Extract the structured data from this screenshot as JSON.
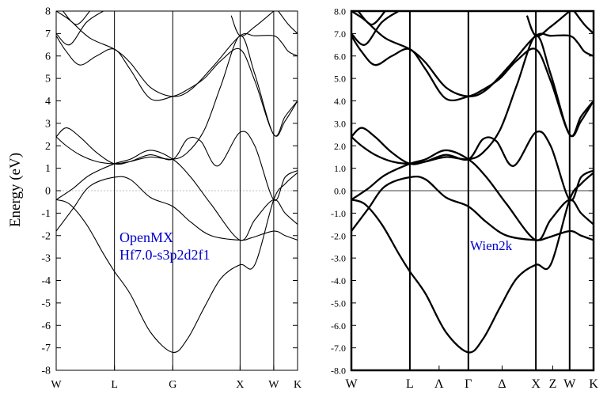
{
  "y_axis_label": "Energy (eV)",
  "chart_data": [
    {
      "type": "line",
      "panel": "left",
      "annotation": [
        "OpenMX",
        "Hf7.0-s3p2d2f1"
      ],
      "annotation_color": "#0000cc",
      "ylim": [
        -8,
        8
      ],
      "y_ticks": [
        -8,
        -7,
        -6,
        -5,
        -4,
        -3,
        -2,
        -1,
        0,
        1,
        2,
        3,
        4,
        5,
        6,
        7,
        8
      ],
      "y_tick_labels": [
        "-8",
        "-7",
        "-6",
        "-5",
        "-4",
        "-3",
        "-2",
        "-1",
        "0",
        "1",
        "2",
        "3",
        "4",
        "5",
        "6",
        "7",
        "8"
      ],
      "kpath_labels": [
        "W",
        "L",
        "G",
        "X",
        "W",
        "K"
      ],
      "kpath_positions": [
        0,
        0.866,
        1.732,
        2.732,
        3.232,
        3.586
      ],
      "vertical_lines_at": [
        0.866,
        1.732,
        2.732,
        3.232
      ],
      "fermi_line": {
        "y": 0,
        "style": "dotted"
      },
      "line_color": "#000000",
      "series": [
        {
          "x": [
            0,
            0.25,
            0.5,
            0.866,
            1.1,
            1.4,
            1.732,
            2.0,
            2.3,
            2.732,
            2.9,
            3.232,
            3.4,
            3.586
          ],
          "y": [
            -1.8,
            -0.8,
            0.2,
            0.6,
            0.5,
            -0.3,
            -0.7,
            -1.4,
            -2.0,
            -2.2,
            -2.1,
            -1.8,
            -2.0,
            -2.2
          ]
        },
        {
          "x": [
            0,
            0.2,
            0.45,
            0.7,
            0.866,
            1.1,
            1.4,
            1.732,
            1.95,
            2.2,
            2.45,
            2.732,
            2.95,
            3.232,
            3.4,
            3.586
          ],
          "y": [
            -0.4,
            -0.6,
            -1.5,
            -2.8,
            -3.6,
            -4.6,
            -6.3,
            -7.2,
            -6.6,
            -5.2,
            -3.9,
            -3.3,
            -3.3,
            -0.4,
            0.3,
            0.8
          ]
        },
        {
          "x": [
            0,
            0.25,
            0.5,
            0.866,
            1.1,
            1.4,
            1.732,
            2.0,
            2.3,
            2.732,
            2.95,
            3.232,
            3.4,
            3.586
          ],
          "y": [
            -0.4,
            0.1,
            0.7,
            1.2,
            1.4,
            1.8,
            1.4,
            0.6,
            -0.6,
            -2.2,
            -1.3,
            -0.4,
            -1.0,
            -1.5
          ]
        },
        {
          "x": [
            0,
            0.15,
            0.35,
            0.6,
            0.866,
            1.1,
            1.4,
            1.732,
            1.95,
            2.15,
            2.4,
            2.732,
            2.95,
            3.232,
            3.4,
            3.586
          ],
          "y": [
            2.4,
            2.8,
            2.4,
            1.7,
            1.2,
            1.3,
            1.6,
            1.4,
            2.3,
            2.2,
            1.1,
            2.6,
            2.0,
            -0.4,
            0.6,
            0.9
          ]
        },
        {
          "x": [
            0,
            0.15,
            0.35,
            0.6,
            0.866,
            1.1,
            1.4,
            1.732,
            1.95,
            2.2,
            2.45,
            2.732,
            2.95,
            3.232,
            3.4,
            3.586
          ],
          "y": [
            2.4,
            2.0,
            1.6,
            1.3,
            1.2,
            1.3,
            1.5,
            1.4,
            1.7,
            2.7,
            4.7,
            6.9,
            5.2,
            2.5,
            3.3,
            4.0
          ]
        },
        {
          "x": [
            0,
            0.15,
            0.35,
            0.6,
            0.866,
            1.1,
            1.4,
            1.732,
            1.95,
            2.2,
            2.45,
            2.732,
            2.95,
            3.232,
            3.4,
            3.586
          ],
          "y": [
            6.9,
            6.2,
            5.6,
            6.0,
            6.3,
            5.4,
            4.1,
            4.2,
            4.5,
            5.0,
            5.8,
            6.3,
            4.9,
            2.5,
            3.1,
            4.0
          ]
        },
        {
          "x": [
            0,
            0.2,
            0.5,
            0.866,
            1.1,
            1.4,
            1.732,
            2.0,
            2.35,
            2.732,
            2.95,
            3.232,
            3.35,
            3.45,
            3.586
          ],
          "y": [
            8.0,
            7.6,
            6.8,
            6.3,
            5.7,
            4.6,
            4.2,
            4.5,
            5.6,
            6.9,
            6.9,
            6.9,
            6.6,
            6.2,
            6.0
          ]
        },
        {
          "x": [
            0,
            0.2,
            0.45,
            0.7
          ],
          "y": [
            7.0,
            6.5,
            7.5,
            8.0
          ]
        },
        {
          "x": [
            0.1,
            0.3,
            0.5
          ],
          "y": [
            8.0,
            7.4,
            8.0
          ]
        },
        {
          "x": [
            2.6,
            2.732,
            2.95,
            3.232
          ],
          "y": [
            7.8,
            6.9,
            7.3,
            8.0
          ]
        },
        {
          "x": [
            3.3,
            3.45,
            3.586
          ],
          "y": [
            8.0,
            7.4,
            7.0
          ]
        }
      ]
    },
    {
      "type": "line",
      "panel": "right",
      "annotation": [
        "Wien2k"
      ],
      "annotation_color": "#0000cc",
      "ylim": [
        -8,
        8
      ],
      "y_ticks": [
        -8,
        -7,
        -6,
        -5,
        -4,
        -3,
        -2,
        -1,
        0,
        1,
        2,
        3,
        4,
        5,
        6,
        7,
        8
      ],
      "y_tick_labels": [
        "-8.0",
        "-7.0",
        "-6.0",
        "-5.0",
        "-4.0",
        "-3.0",
        "-2.0",
        "-1.0",
        "0.0",
        "1.0",
        "2.0",
        "3.0",
        "4.0",
        "5.0",
        "6.0",
        "7.0",
        "8.0"
      ],
      "kpath_labels": [
        "W",
        "L",
        "Λ",
        "Γ",
        "Δ",
        "X",
        "Z",
        "W",
        "K"
      ],
      "kpath_positions": [
        0,
        0.866,
        1.299,
        1.732,
        2.232,
        2.732,
        2.982,
        3.232,
        3.586
      ],
      "vertical_lines_at": [
        0.866,
        1.732,
        2.732,
        3.232
      ],
      "fermi_line": {
        "y": 0,
        "style": "solid"
      },
      "line_color": "#000000",
      "series": [
        {
          "x": [
            0,
            0.25,
            0.5,
            0.866,
            1.1,
            1.4,
            1.732,
            2.0,
            2.3,
            2.732,
            2.9,
            3.232,
            3.4,
            3.586
          ],
          "y": [
            -1.8,
            -0.8,
            0.2,
            0.6,
            0.5,
            -0.3,
            -0.7,
            -1.4,
            -2.0,
            -2.2,
            -2.1,
            -1.8,
            -2.0,
            -2.2
          ]
        },
        {
          "x": [
            0,
            0.2,
            0.45,
            0.7,
            0.866,
            1.1,
            1.4,
            1.732,
            1.95,
            2.2,
            2.45,
            2.732,
            2.95,
            3.232,
            3.4,
            3.586
          ],
          "y": [
            -0.4,
            -0.6,
            -1.5,
            -2.8,
            -3.6,
            -4.6,
            -6.3,
            -7.2,
            -6.6,
            -5.2,
            -3.9,
            -3.3,
            -3.3,
            -0.4,
            0.3,
            0.8
          ]
        },
        {
          "x": [
            0,
            0.25,
            0.5,
            0.866,
            1.1,
            1.4,
            1.732,
            2.0,
            2.3,
            2.732,
            2.95,
            3.232,
            3.4,
            3.586
          ],
          "y": [
            -0.4,
            0.1,
            0.7,
            1.2,
            1.4,
            1.8,
            1.4,
            0.6,
            -0.6,
            -2.2,
            -1.3,
            -0.4,
            -1.0,
            -1.5
          ]
        },
        {
          "x": [
            0,
            0.15,
            0.35,
            0.6,
            0.866,
            1.1,
            1.4,
            1.732,
            1.95,
            2.15,
            2.4,
            2.732,
            2.95,
            3.232,
            3.4,
            3.586
          ],
          "y": [
            2.4,
            2.8,
            2.4,
            1.7,
            1.2,
            1.3,
            1.6,
            1.4,
            2.3,
            2.2,
            1.1,
            2.6,
            2.0,
            -0.4,
            0.6,
            0.9
          ]
        },
        {
          "x": [
            0,
            0.15,
            0.35,
            0.6,
            0.866,
            1.1,
            1.4,
            1.732,
            1.95,
            2.2,
            2.45,
            2.732,
            2.95,
            3.232,
            3.4,
            3.586
          ],
          "y": [
            2.4,
            2.0,
            1.6,
            1.3,
            1.2,
            1.3,
            1.5,
            1.4,
            1.7,
            2.7,
            4.7,
            6.9,
            5.2,
            2.5,
            3.3,
            4.0
          ]
        },
        {
          "x": [
            0,
            0.15,
            0.35,
            0.6,
            0.866,
            1.1,
            1.4,
            1.732,
            1.95,
            2.2,
            2.45,
            2.732,
            2.95,
            3.232,
            3.4,
            3.586
          ],
          "y": [
            6.9,
            6.2,
            5.6,
            6.0,
            6.3,
            5.4,
            4.1,
            4.2,
            4.5,
            5.0,
            5.8,
            6.3,
            4.9,
            2.5,
            3.1,
            4.0
          ]
        },
        {
          "x": [
            0,
            0.2,
            0.5,
            0.866,
            1.1,
            1.4,
            1.732,
            2.0,
            2.35,
            2.732,
            2.95,
            3.232,
            3.35,
            3.45,
            3.586
          ],
          "y": [
            8.0,
            7.6,
            6.8,
            6.3,
            5.7,
            4.6,
            4.2,
            4.5,
            5.6,
            6.9,
            6.9,
            6.9,
            6.6,
            6.2,
            6.0
          ]
        },
        {
          "x": [
            0,
            0.2,
            0.45,
            0.7
          ],
          "y": [
            7.0,
            6.5,
            7.5,
            8.0
          ]
        },
        {
          "x": [
            0.1,
            0.3,
            0.5
          ],
          "y": [
            8.0,
            7.4,
            8.0
          ]
        },
        {
          "x": [
            2.6,
            2.732,
            2.95,
            3.232
          ],
          "y": [
            7.8,
            6.9,
            7.3,
            8.0
          ]
        },
        {
          "x": [
            3.3,
            3.45,
            3.586
          ],
          "y": [
            8.0,
            7.4,
            7.0
          ]
        }
      ]
    }
  ]
}
